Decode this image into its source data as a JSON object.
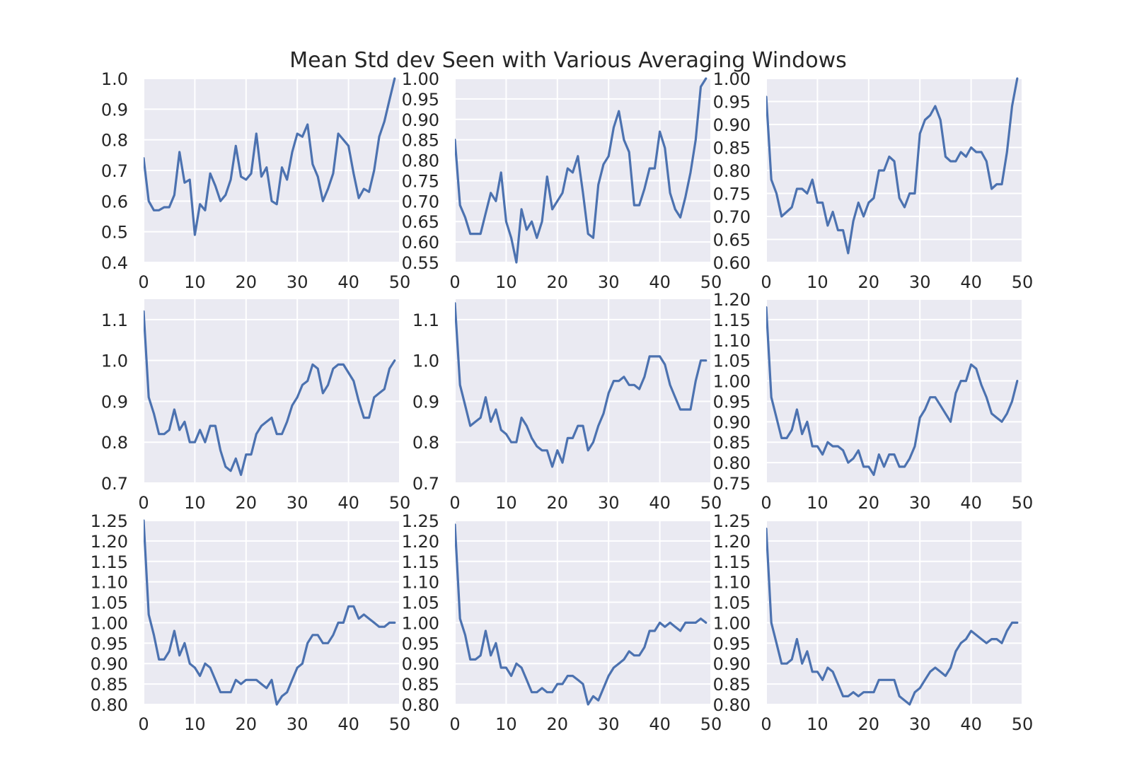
{
  "title": "Mean Std dev Seen with Various Averaging Windows",
  "chart_data": [
    {
      "type": "line",
      "x": [
        0,
        1,
        2,
        3,
        4,
        5,
        6,
        7,
        8,
        9,
        10,
        11,
        12,
        13,
        14,
        15,
        16,
        17,
        18,
        19,
        20,
        21,
        22,
        23,
        24,
        25,
        26,
        27,
        28,
        29,
        30,
        31,
        32,
        33,
        34,
        35,
        36,
        37,
        38,
        39,
        40,
        41,
        42,
        43,
        44,
        45,
        46,
        47,
        48,
        49
      ],
      "xticks": [
        0,
        10,
        20,
        30,
        40,
        50
      ],
      "xlim": [
        0,
        50
      ],
      "ylim": [
        0.4,
        1.0
      ],
      "yticks": [
        "0.4",
        "0.5",
        "0.6",
        "0.7",
        "0.8",
        "0.9",
        "1.0"
      ],
      "grid": true,
      "series": [
        {
          "values": [
            0.74,
            0.6,
            0.57,
            0.57,
            0.58,
            0.58,
            0.62,
            0.76,
            0.66,
            0.67,
            0.49,
            0.59,
            0.57,
            0.69,
            0.65,
            0.6,
            0.62,
            0.67,
            0.78,
            0.68,
            0.67,
            0.69,
            0.82,
            0.68,
            0.71,
            0.6,
            0.59,
            0.71,
            0.67,
            0.76,
            0.82,
            0.81,
            0.85,
            0.72,
            0.68,
            0.6,
            0.64,
            0.69,
            0.82,
            0.8,
            0.78,
            0.69,
            0.61,
            0.64,
            0.63,
            0.7,
            0.81,
            0.86,
            0.93,
            1.0
          ]
        }
      ]
    },
    {
      "type": "line",
      "x": [
        0,
        1,
        2,
        3,
        4,
        5,
        6,
        7,
        8,
        9,
        10,
        11,
        12,
        13,
        14,
        15,
        16,
        17,
        18,
        19,
        20,
        21,
        22,
        23,
        24,
        25,
        26,
        27,
        28,
        29,
        30,
        31,
        32,
        33,
        34,
        35,
        36,
        37,
        38,
        39,
        40,
        41,
        42,
        43,
        44,
        45,
        46,
        47,
        48,
        49
      ],
      "xticks": [
        0,
        10,
        20,
        30,
        40,
        50
      ],
      "xlim": [
        0,
        50
      ],
      "ylim": [
        0.55,
        1.0
      ],
      "yticks": [
        "0.55",
        "0.60",
        "0.65",
        "0.70",
        "0.75",
        "0.80",
        "0.85",
        "0.90",
        "0.95",
        "1.00"
      ],
      "grid": true,
      "series": [
        {
          "values": [
            0.85,
            0.69,
            0.66,
            0.62,
            0.62,
            0.62,
            0.67,
            0.72,
            0.7,
            0.77,
            0.65,
            0.61,
            0.55,
            0.68,
            0.63,
            0.65,
            0.61,
            0.65,
            0.76,
            0.68,
            0.7,
            0.72,
            0.78,
            0.77,
            0.81,
            0.72,
            0.62,
            0.61,
            0.74,
            0.79,
            0.81,
            0.88,
            0.92,
            0.85,
            0.82,
            0.69,
            0.69,
            0.73,
            0.78,
            0.78,
            0.87,
            0.83,
            0.72,
            0.68,
            0.66,
            0.71,
            0.77,
            0.85,
            0.98,
            1.0
          ]
        }
      ]
    },
    {
      "type": "line",
      "x": [
        0,
        1,
        2,
        3,
        4,
        5,
        6,
        7,
        8,
        9,
        10,
        11,
        12,
        13,
        14,
        15,
        16,
        17,
        18,
        19,
        20,
        21,
        22,
        23,
        24,
        25,
        26,
        27,
        28,
        29,
        30,
        31,
        32,
        33,
        34,
        35,
        36,
        37,
        38,
        39,
        40,
        41,
        42,
        43,
        44,
        45,
        46,
        47,
        48,
        49
      ],
      "xticks": [
        0,
        10,
        20,
        30,
        40,
        50
      ],
      "xlim": [
        0,
        50
      ],
      "ylim": [
        0.6,
        1.0
      ],
      "yticks": [
        "0.60",
        "0.65",
        "0.70",
        "0.75",
        "0.80",
        "0.85",
        "0.90",
        "0.95",
        "1.00"
      ],
      "grid": true,
      "series": [
        {
          "values": [
            0.96,
            0.78,
            0.75,
            0.7,
            0.71,
            0.72,
            0.76,
            0.76,
            0.75,
            0.78,
            0.73,
            0.73,
            0.68,
            0.71,
            0.67,
            0.67,
            0.62,
            0.69,
            0.73,
            0.7,
            0.73,
            0.74,
            0.8,
            0.8,
            0.83,
            0.82,
            0.74,
            0.72,
            0.75,
            0.75,
            0.88,
            0.91,
            0.92,
            0.94,
            0.91,
            0.83,
            0.82,
            0.82,
            0.84,
            0.83,
            0.85,
            0.84,
            0.84,
            0.82,
            0.76,
            0.77,
            0.77,
            0.84,
            0.94,
            1.0
          ]
        }
      ]
    },
    {
      "type": "line",
      "x": [
        0,
        1,
        2,
        3,
        4,
        5,
        6,
        7,
        8,
        9,
        10,
        11,
        12,
        13,
        14,
        15,
        16,
        17,
        18,
        19,
        20,
        21,
        22,
        23,
        24,
        25,
        26,
        27,
        28,
        29,
        30,
        31,
        32,
        33,
        34,
        35,
        36,
        37,
        38,
        39,
        40,
        41,
        42,
        43,
        44,
        45,
        46,
        47,
        48,
        49
      ],
      "xticks": [
        0,
        10,
        20,
        30,
        40,
        50
      ],
      "xlim": [
        0,
        50
      ],
      "ylim": [
        0.7,
        1.15
      ],
      "yticks": [
        "0.7",
        "0.8",
        "0.9",
        "1.0",
        "1.1"
      ],
      "grid": true,
      "series": [
        {
          "values": [
            1.12,
            0.91,
            0.87,
            0.82,
            0.82,
            0.83,
            0.88,
            0.83,
            0.85,
            0.8,
            0.8,
            0.83,
            0.8,
            0.84,
            0.84,
            0.78,
            0.74,
            0.73,
            0.76,
            0.72,
            0.77,
            0.77,
            0.82,
            0.84,
            0.85,
            0.86,
            0.82,
            0.82,
            0.85,
            0.89,
            0.91,
            0.94,
            0.95,
            0.99,
            0.98,
            0.92,
            0.94,
            0.98,
            0.99,
            0.99,
            0.97,
            0.95,
            0.9,
            0.86,
            0.86,
            0.91,
            0.92,
            0.93,
            0.98,
            1.0
          ]
        }
      ]
    },
    {
      "type": "line",
      "x": [
        0,
        1,
        2,
        3,
        4,
        5,
        6,
        7,
        8,
        9,
        10,
        11,
        12,
        13,
        14,
        15,
        16,
        17,
        18,
        19,
        20,
        21,
        22,
        23,
        24,
        25,
        26,
        27,
        28,
        29,
        30,
        31,
        32,
        33,
        34,
        35,
        36,
        37,
        38,
        39,
        40,
        41,
        42,
        43,
        44,
        45,
        46,
        47,
        48,
        49
      ],
      "xticks": [
        0,
        10,
        20,
        30,
        40,
        50
      ],
      "xlim": [
        0,
        50
      ],
      "ylim": [
        0.7,
        1.15
      ],
      "yticks": [
        "0.7",
        "0.8",
        "0.9",
        "1.0",
        "1.1"
      ],
      "grid": true,
      "series": [
        {
          "values": [
            1.14,
            0.94,
            0.89,
            0.84,
            0.85,
            0.86,
            0.91,
            0.85,
            0.88,
            0.83,
            0.82,
            0.8,
            0.8,
            0.86,
            0.84,
            0.81,
            0.79,
            0.78,
            0.78,
            0.74,
            0.78,
            0.75,
            0.81,
            0.81,
            0.84,
            0.84,
            0.78,
            0.8,
            0.84,
            0.87,
            0.92,
            0.95,
            0.95,
            0.96,
            0.94,
            0.94,
            0.93,
            0.96,
            1.01,
            1.01,
            1.01,
            0.99,
            0.94,
            0.91,
            0.88,
            0.88,
            0.88,
            0.95,
            1.0,
            1.0
          ]
        }
      ]
    },
    {
      "type": "line",
      "x": [
        0,
        1,
        2,
        3,
        4,
        5,
        6,
        7,
        8,
        9,
        10,
        11,
        12,
        13,
        14,
        15,
        16,
        17,
        18,
        19,
        20,
        21,
        22,
        23,
        24,
        25,
        26,
        27,
        28,
        29,
        30,
        31,
        32,
        33,
        34,
        35,
        36,
        37,
        38,
        39,
        40,
        41,
        42,
        43,
        44,
        45,
        46,
        47,
        48,
        49
      ],
      "xticks": [
        0,
        10,
        20,
        30,
        40,
        50
      ],
      "xlim": [
        0,
        50
      ],
      "ylim": [
        0.75,
        1.2
      ],
      "yticks": [
        "0.75",
        "0.80",
        "0.85",
        "0.90",
        "0.95",
        "1.00",
        "1.05",
        "1.10",
        "1.15",
        "1.20"
      ],
      "grid": true,
      "series": [
        {
          "values": [
            1.18,
            0.96,
            0.91,
            0.86,
            0.86,
            0.88,
            0.93,
            0.87,
            0.9,
            0.84,
            0.84,
            0.82,
            0.85,
            0.84,
            0.84,
            0.83,
            0.8,
            0.81,
            0.83,
            0.79,
            0.79,
            0.77,
            0.82,
            0.79,
            0.82,
            0.82,
            0.79,
            0.79,
            0.81,
            0.84,
            0.91,
            0.93,
            0.96,
            0.96,
            0.94,
            0.92,
            0.9,
            0.97,
            1.0,
            1.0,
            1.04,
            1.03,
            0.99,
            0.96,
            0.92,
            0.91,
            0.9,
            0.92,
            0.95,
            1.0
          ]
        }
      ]
    },
    {
      "type": "line",
      "x": [
        0,
        1,
        2,
        3,
        4,
        5,
        6,
        7,
        8,
        9,
        10,
        11,
        12,
        13,
        14,
        15,
        16,
        17,
        18,
        19,
        20,
        21,
        22,
        23,
        24,
        25,
        26,
        27,
        28,
        29,
        30,
        31,
        32,
        33,
        34,
        35,
        36,
        37,
        38,
        39,
        40,
        41,
        42,
        43,
        44,
        45,
        46,
        47,
        48,
        49
      ],
      "xticks": [
        0,
        10,
        20,
        30,
        40,
        50
      ],
      "xlim": [
        0,
        50
      ],
      "ylim": [
        0.8,
        1.25
      ],
      "yticks": [
        "0.80",
        "0.85",
        "0.90",
        "0.95",
        "1.00",
        "1.05",
        "1.10",
        "1.15",
        "1.20",
        "1.25"
      ],
      "grid": true,
      "series": [
        {
          "values": [
            1.25,
            1.02,
            0.97,
            0.91,
            0.91,
            0.93,
            0.98,
            0.92,
            0.95,
            0.9,
            0.89,
            0.87,
            0.9,
            0.89,
            0.86,
            0.83,
            0.83,
            0.83,
            0.86,
            0.85,
            0.86,
            0.86,
            0.86,
            0.85,
            0.84,
            0.86,
            0.8,
            0.82,
            0.83,
            0.86,
            0.89,
            0.9,
            0.95,
            0.97,
            0.97,
            0.95,
            0.95,
            0.97,
            1.0,
            1.0,
            1.04,
            1.04,
            1.01,
            1.02,
            1.01,
            1.0,
            0.99,
            0.99,
            1.0,
            1.0
          ]
        }
      ]
    },
    {
      "type": "line",
      "x": [
        0,
        1,
        2,
        3,
        4,
        5,
        6,
        7,
        8,
        9,
        10,
        11,
        12,
        13,
        14,
        15,
        16,
        17,
        18,
        19,
        20,
        21,
        22,
        23,
        24,
        25,
        26,
        27,
        28,
        29,
        30,
        31,
        32,
        33,
        34,
        35,
        36,
        37,
        38,
        39,
        40,
        41,
        42,
        43,
        44,
        45,
        46,
        47,
        48,
        49
      ],
      "xticks": [
        0,
        10,
        20,
        30,
        40,
        50
      ],
      "xlim": [
        0,
        50
      ],
      "ylim": [
        0.8,
        1.25
      ],
      "yticks": [
        "0.80",
        "0.85",
        "0.90",
        "0.95",
        "1.00",
        "1.05",
        "1.10",
        "1.15",
        "1.20",
        "1.25"
      ],
      "grid": true,
      "series": [
        {
          "values": [
            1.24,
            1.01,
            0.97,
            0.91,
            0.91,
            0.92,
            0.98,
            0.92,
            0.95,
            0.89,
            0.89,
            0.87,
            0.9,
            0.89,
            0.86,
            0.83,
            0.83,
            0.84,
            0.83,
            0.83,
            0.85,
            0.85,
            0.87,
            0.87,
            0.86,
            0.85,
            0.8,
            0.82,
            0.81,
            0.84,
            0.87,
            0.89,
            0.9,
            0.91,
            0.93,
            0.92,
            0.92,
            0.94,
            0.98,
            0.98,
            1.0,
            0.99,
            1.0,
            0.99,
            0.98,
            1.0,
            1.0,
            1.0,
            1.01,
            1.0
          ]
        }
      ]
    },
    {
      "type": "line",
      "x": [
        0,
        1,
        2,
        3,
        4,
        5,
        6,
        7,
        8,
        9,
        10,
        11,
        12,
        13,
        14,
        15,
        16,
        17,
        18,
        19,
        20,
        21,
        22,
        23,
        24,
        25,
        26,
        27,
        28,
        29,
        30,
        31,
        32,
        33,
        34,
        35,
        36,
        37,
        38,
        39,
        40,
        41,
        42,
        43,
        44,
        45,
        46,
        47,
        48,
        49
      ],
      "xticks": [
        0,
        10,
        20,
        30,
        40,
        50
      ],
      "xlim": [
        0,
        50
      ],
      "ylim": [
        0.8,
        1.25
      ],
      "yticks": [
        "0.80",
        "0.85",
        "0.90",
        "0.95",
        "1.00",
        "1.05",
        "1.10",
        "1.15",
        "1.20",
        "1.25"
      ],
      "grid": true,
      "series": [
        {
          "values": [
            1.23,
            1.0,
            0.95,
            0.9,
            0.9,
            0.91,
            0.96,
            0.9,
            0.93,
            0.88,
            0.88,
            0.86,
            0.89,
            0.88,
            0.85,
            0.82,
            0.82,
            0.83,
            0.82,
            0.83,
            0.83,
            0.83,
            0.86,
            0.86,
            0.86,
            0.86,
            0.82,
            0.81,
            0.8,
            0.83,
            0.84,
            0.86,
            0.88,
            0.89,
            0.88,
            0.87,
            0.89,
            0.93,
            0.95,
            0.96,
            0.98,
            0.97,
            0.96,
            0.95,
            0.96,
            0.96,
            0.95,
            0.98,
            1.0,
            1.0
          ]
        }
      ]
    }
  ]
}
